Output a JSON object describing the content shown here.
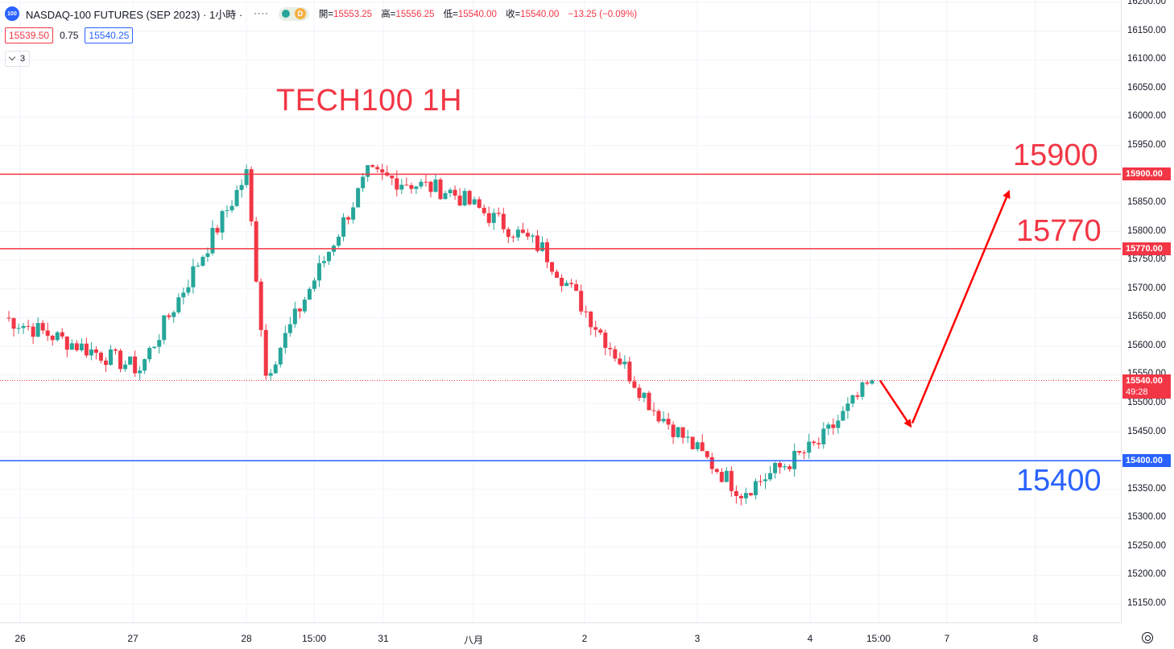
{
  "legend": {
    "symbol_badge": "100",
    "symbol_title": "NASDAQ-100 FUTURES (SEP 2023) · 1小時 ·",
    "menu_dots": "····",
    "status_letter": "D",
    "open_label": "開=",
    "open": "15553.25",
    "high_label": "高=",
    "high": "15556.25",
    "low_label": "低=",
    "low": "15540.00",
    "close_label": "收=",
    "close": "15540.00",
    "change": "−13.25 (−0.09%)"
  },
  "quote": {
    "sell": "15539.50",
    "spread": "0.75",
    "buy": "15540.25"
  },
  "indicators": {
    "count": "3"
  },
  "annotation_title": "TECH100 1H",
  "levels": [
    {
      "value": 15900,
      "label": "15900",
      "tag": "15900.00",
      "color": "#f23645"
    },
    {
      "value": 15770,
      "label": "15770",
      "tag": "15770.00",
      "color": "#f23645"
    },
    {
      "value": 15400,
      "label": "15400",
      "tag": "15400.00",
      "color": "#2962ff"
    }
  ],
  "current_price": {
    "value": 15540,
    "tag": "15540.00",
    "countdown": "49:28",
    "color": "#f23645"
  },
  "colors": {
    "up": "#26a69a",
    "down": "#f23645",
    "blue": "#2962ff",
    "arrow": "#ff0000"
  },
  "chart_data": {
    "type": "candlestick",
    "title": "TECH100 1H",
    "ylim": [
      15120,
      16210
    ],
    "y_ticks": [
      "16200.00",
      "16150.00",
      "16100.00",
      "16050.00",
      "16000.00",
      "15950.00",
      "15900.00",
      "15850.00",
      "15800.00",
      "15750.00",
      "15700.00",
      "15650.00",
      "15600.00",
      "15550.00",
      "15500.00",
      "15450.00",
      "15400.00",
      "15350.00",
      "15300.00",
      "15250.00",
      "15200.00",
      "15150.00"
    ],
    "x_ticks": [
      "26",
      "27",
      "28",
      "15:00",
      "31",
      "八月",
      "2",
      "3",
      "4",
      "15:00",
      "7",
      "8"
    ],
    "key_closes": [
      {
        "time": "26",
        "close": 15650
      },
      {
        "time": "27",
        "close": 15560
      },
      {
        "time": "28 early",
        "close": 15900
      },
      {
        "time": "28 mid",
        "close": 15550
      },
      {
        "time": "31",
        "close": 15900
      },
      {
        "time": "八月",
        "close": 15870
      },
      {
        "time": "2",
        "close": 15770
      },
      {
        "time": "3",
        "close": 15490
      },
      {
        "time": "3 late",
        "close": 15345
      },
      {
        "time": "4",
        "close": 15430
      },
      {
        "time": "15:00",
        "close": 15540
      }
    ],
    "support_resistance": [
      15900,
      15770,
      15400
    ],
    "projection": [
      15540,
      15460,
      15870
    ]
  }
}
